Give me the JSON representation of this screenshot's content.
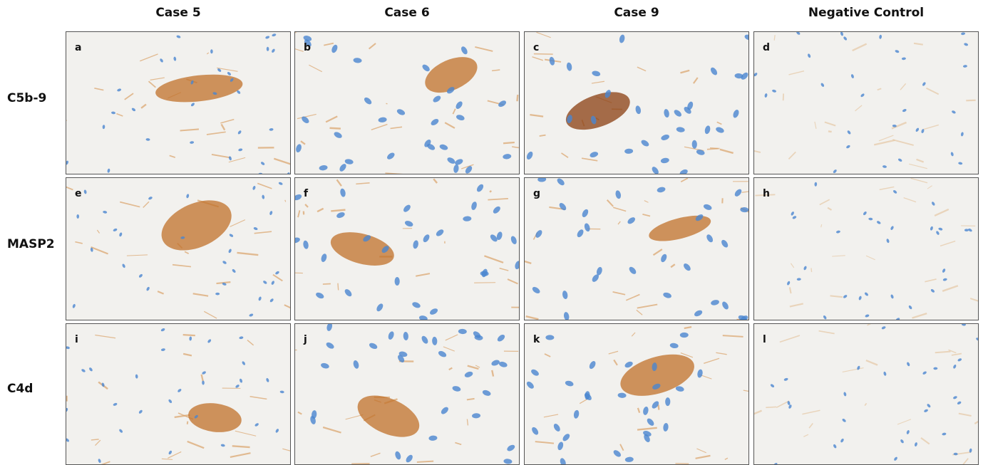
{
  "column_headers": [
    "Case 5",
    "Case 6",
    "Case 9",
    "Negative Control"
  ],
  "row_labels": [
    "C5b-9",
    "MASP2",
    "C4d"
  ],
  "panels": [
    [
      "a",
      "b",
      "c",
      "d"
    ],
    [
      "e",
      "f",
      "g",
      "h"
    ],
    [
      "i",
      "j",
      "k",
      "l"
    ]
  ]
}
